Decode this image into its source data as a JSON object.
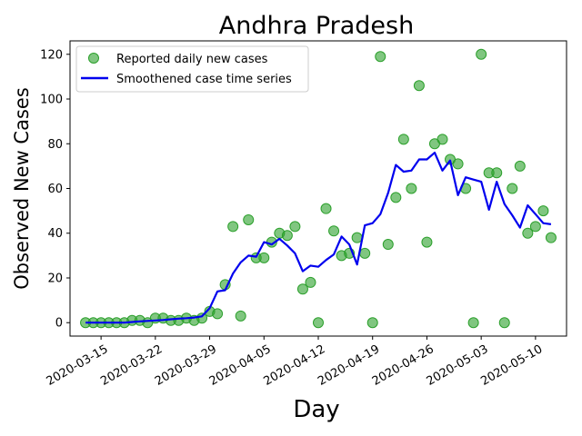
{
  "chart_data": {
    "type": "scatter+line",
    "title": "Andhra Pradesh",
    "xlabel": "Day",
    "ylabel": "Observed New Cases",
    "x_range": [
      "2020-03-11",
      "2020-05-14"
    ],
    "ylim": [
      -6,
      126
    ],
    "y_ticks": [
      0,
      20,
      40,
      60,
      80,
      100,
      120
    ],
    "x_ticks": [
      "2020-03-15",
      "2020-03-22",
      "2020-03-29",
      "2020-04-05",
      "2020-04-12",
      "2020-04-19",
      "2020-04-26",
      "2020-05-03",
      "2020-05-10"
    ],
    "grid": false,
    "legend": {
      "placement": "top-left",
      "entries": [
        "Reported daily new cases",
        "Smoothened case time series"
      ]
    },
    "series": [
      {
        "name": "Reported daily new cases",
        "kind": "scatter",
        "color": "#2ca02c",
        "points": [
          [
            "2020-03-13",
            0
          ],
          [
            "2020-03-14",
            0
          ],
          [
            "2020-03-15",
            0
          ],
          [
            "2020-03-16",
            0
          ],
          [
            "2020-03-17",
            0
          ],
          [
            "2020-03-18",
            0
          ],
          [
            "2020-03-19",
            1
          ],
          [
            "2020-03-20",
            1
          ],
          [
            "2020-03-21",
            0
          ],
          [
            "2020-03-22",
            2
          ],
          [
            "2020-03-23",
            2
          ],
          [
            "2020-03-24",
            1
          ],
          [
            "2020-03-25",
            1
          ],
          [
            "2020-03-26",
            2
          ],
          [
            "2020-03-27",
            1
          ],
          [
            "2020-03-28",
            2
          ],
          [
            "2020-03-29",
            5
          ],
          [
            "2020-03-30",
            4
          ],
          [
            "2020-03-31",
            17
          ],
          [
            "2020-04-01",
            43
          ],
          [
            "2020-04-02",
            3
          ],
          [
            "2020-04-03",
            46
          ],
          [
            "2020-04-04",
            29
          ],
          [
            "2020-04-05",
            29
          ],
          [
            "2020-04-06",
            36
          ],
          [
            "2020-04-07",
            40
          ],
          [
            "2020-04-08",
            39
          ],
          [
            "2020-04-09",
            43
          ],
          [
            "2020-04-10",
            15
          ],
          [
            "2020-04-11",
            18
          ],
          [
            "2020-04-12",
            0
          ],
          [
            "2020-04-13",
            51
          ],
          [
            "2020-04-14",
            41
          ],
          [
            "2020-04-15",
            30
          ],
          [
            "2020-04-16",
            31
          ],
          [
            "2020-04-17",
            38
          ],
          [
            "2020-04-18",
            31
          ],
          [
            "2020-04-19",
            0
          ],
          [
            "2020-04-20",
            119
          ],
          [
            "2020-04-21",
            35
          ],
          [
            "2020-04-22",
            56
          ],
          [
            "2020-04-23",
            82
          ],
          [
            "2020-04-24",
            60
          ],
          [
            "2020-04-25",
            106
          ],
          [
            "2020-04-26",
            36
          ],
          [
            "2020-04-27",
            80
          ],
          [
            "2020-04-28",
            82
          ],
          [
            "2020-04-29",
            73
          ],
          [
            "2020-04-30",
            71
          ],
          [
            "2020-05-01",
            60
          ],
          [
            "2020-05-02",
            0
          ],
          [
            "2020-05-03",
            120
          ],
          [
            "2020-05-04",
            67
          ],
          [
            "2020-05-05",
            67
          ],
          [
            "2020-05-06",
            0
          ],
          [
            "2020-05-07",
            60
          ],
          [
            "2020-05-08",
            70
          ],
          [
            "2020-05-09",
            40
          ],
          [
            "2020-05-10",
            43
          ],
          [
            "2020-05-11",
            50
          ],
          [
            "2020-05-12",
            38
          ]
        ]
      },
      {
        "name": "Smoothened case time series",
        "kind": "line",
        "color": "#0000ee",
        "points": [
          [
            "2020-03-13",
            0
          ],
          [
            "2020-03-14",
            0
          ],
          [
            "2020-03-15",
            0
          ],
          [
            "2020-03-16",
            0
          ],
          [
            "2020-03-17",
            0
          ],
          [
            "2020-03-18",
            0
          ],
          [
            "2020-03-19",
            0.3
          ],
          [
            "2020-03-20",
            0.6
          ],
          [
            "2020-03-21",
            0.8
          ],
          [
            "2020-03-22",
            1
          ],
          [
            "2020-03-23",
            1.2
          ],
          [
            "2020-03-24",
            1.5
          ],
          [
            "2020-03-25",
            1.8
          ],
          [
            "2020-03-26",
            2
          ],
          [
            "2020-03-27",
            2.3
          ],
          [
            "2020-03-28",
            2.8
          ],
          [
            "2020-03-29",
            6.5
          ],
          [
            "2020-03-30",
            14
          ],
          [
            "2020-03-31",
            14.5
          ],
          [
            "2020-04-01",
            22
          ],
          [
            "2020-04-02",
            27
          ],
          [
            "2020-04-03",
            30
          ],
          [
            "2020-04-04",
            29.5
          ],
          [
            "2020-04-05",
            36
          ],
          [
            "2020-04-06",
            35
          ],
          [
            "2020-04-07",
            37.5
          ],
          [
            "2020-04-08",
            34.5
          ],
          [
            "2020-04-09",
            31
          ],
          [
            "2020-04-10",
            23
          ],
          [
            "2020-04-11",
            25.5
          ],
          [
            "2020-04-12",
            25
          ],
          [
            "2020-04-13",
            28
          ],
          [
            "2020-04-14",
            30.5
          ],
          [
            "2020-04-15",
            38.5
          ],
          [
            "2020-04-16",
            35
          ],
          [
            "2020-04-17",
            26
          ],
          [
            "2020-04-18",
            43.5
          ],
          [
            "2020-04-19",
            44.5
          ],
          [
            "2020-04-20",
            48.5
          ],
          [
            "2020-04-21",
            58
          ],
          [
            "2020-04-22",
            70.5
          ],
          [
            "2020-04-23",
            67.5
          ],
          [
            "2020-04-24",
            68
          ],
          [
            "2020-04-25",
            73
          ],
          [
            "2020-04-26",
            73
          ],
          [
            "2020-04-27",
            76
          ],
          [
            "2020-04-28",
            68
          ],
          [
            "2020-04-29",
            72.5
          ],
          [
            "2020-04-30",
            57
          ],
          [
            "2020-05-01",
            65
          ],
          [
            "2020-05-02",
            64
          ],
          [
            "2020-05-03",
            63
          ],
          [
            "2020-05-04",
            50.5
          ],
          [
            "2020-05-05",
            63
          ],
          [
            "2020-05-06",
            53
          ],
          [
            "2020-05-07",
            48
          ],
          [
            "2020-05-08",
            42.5
          ],
          [
            "2020-05-09",
            52.5
          ],
          [
            "2020-05-10",
            48.5
          ],
          [
            "2020-05-11",
            44.5
          ],
          [
            "2020-05-12",
            44
          ]
        ]
      }
    ]
  }
}
